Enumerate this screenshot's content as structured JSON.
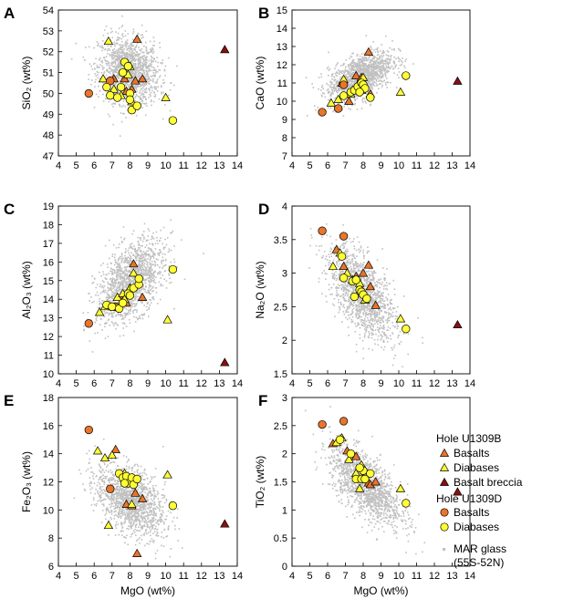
{
  "chart_data": [
    {
      "panel": "A",
      "type": "scatter",
      "xlabel": "",
      "ylabel": "SiO₂ (wt%)",
      "xlim": [
        4,
        14
      ],
      "ylim": [
        47,
        54
      ],
      "xticks": [
        4,
        5,
        6,
        7,
        8,
        9,
        10,
        11,
        12,
        13,
        14
      ],
      "yticks": [
        47,
        48,
        49,
        50,
        51,
        52,
        53,
        54
      ],
      "series": [
        {
          "name": "Basalts (U1309B)",
          "marker": "triangle",
          "color": "#e8752a",
          "points": [
            [
              7.1,
              50.7
            ],
            [
              7.8,
              50.1
            ],
            [
              8.1,
              50.2
            ],
            [
              8.3,
              50.6
            ],
            [
              8.4,
              52.6
            ],
            [
              8.7,
              50.7
            ],
            [
              7.7,
              50.7
            ]
          ]
        },
        {
          "name": "Diabases (U1309B)",
          "marker": "triangle",
          "color": "#ffff33",
          "points": [
            [
              6.5,
              50.7
            ],
            [
              6.8,
              52.5
            ],
            [
              7.1,
              50.2
            ],
            [
              7.5,
              49.9
            ],
            [
              8.0,
              51.3
            ],
            [
              8.1,
              49.6
            ],
            [
              7.9,
              50.9
            ],
            [
              10.0,
              49.8
            ]
          ]
        },
        {
          "name": "Basalt breccia (U1309B)",
          "marker": "triangle",
          "color": "#8b0f0f",
          "points": [
            [
              13.3,
              52.1
            ]
          ]
        },
        {
          "name": "Basalts (U1309D)",
          "marker": "circle",
          "color": "#e8752a",
          "points": [
            [
              5.7,
              50.0
            ],
            [
              6.9,
              50.6
            ]
          ]
        },
        {
          "name": "Diabases (U1309D)",
          "marker": "circle",
          "color": "#ffff33",
          "points": [
            [
              6.7,
              50.3
            ],
            [
              6.9,
              49.9
            ],
            [
              7.3,
              49.8
            ],
            [
              7.5,
              50.3
            ],
            [
              7.7,
              51.5
            ],
            [
              7.9,
              51.3
            ],
            [
              8.0,
              50.0
            ],
            [
              8.0,
              49.7
            ],
            [
              8.1,
              49.2
            ],
            [
              8.4,
              49.4
            ],
            [
              7.6,
              51.0
            ],
            [
              10.4,
              48.7
            ]
          ]
        }
      ]
    },
    {
      "panel": "B",
      "type": "scatter",
      "xlabel": "",
      "ylabel": "CaO (wt%)",
      "xlim": [
        4,
        14
      ],
      "ylim": [
        7,
        15
      ],
      "xticks": [
        4,
        5,
        6,
        7,
        8,
        9,
        10,
        11,
        12,
        13,
        14
      ],
      "yticks": [
        7,
        8,
        9,
        10,
        11,
        12,
        13,
        14,
        15
      ],
      "series": [
        {
          "name": "Basalts (U1309B)",
          "marker": "triangle",
          "color": "#e8752a",
          "points": [
            [
              6.8,
              11.0
            ],
            [
              7.2,
              10.0
            ],
            [
              7.6,
              11.4
            ],
            [
              7.9,
              11.3
            ],
            [
              8.3,
              12.7
            ],
            [
              8.4,
              10.4
            ],
            [
              7.4,
              10.6
            ]
          ]
        },
        {
          "name": "Diabases (U1309B)",
          "marker": "triangle",
          "color": "#ffff33",
          "points": [
            [
              6.2,
              9.9
            ],
            [
              6.6,
              10.1
            ],
            [
              6.9,
              11.2
            ],
            [
              7.3,
              10.4
            ],
            [
              7.7,
              10.9
            ],
            [
              8.0,
              11.3
            ],
            [
              10.1,
              10.5
            ],
            [
              7.9,
              10.6
            ]
          ]
        },
        {
          "name": "Basalt breccia (U1309B)",
          "marker": "triangle",
          "color": "#8b0f0f",
          "points": [
            [
              13.3,
              11.1
            ]
          ]
        },
        {
          "name": "Basalts (U1309D)",
          "marker": "circle",
          "color": "#e8752a",
          "points": [
            [
              5.7,
              9.4
            ],
            [
              6.6,
              9.6
            ],
            [
              6.9,
              10.9
            ]
          ]
        },
        {
          "name": "Diabases (U1309D)",
          "marker": "circle",
          "color": "#ffff33",
          "points": [
            [
              6.9,
              10.3
            ],
            [
              7.3,
              10.5
            ],
            [
              7.5,
              10.6
            ],
            [
              7.7,
              10.8
            ],
            [
              7.9,
              11.0
            ],
            [
              8.0,
              10.9
            ],
            [
              8.1,
              10.7
            ],
            [
              8.4,
              10.2
            ],
            [
              10.4,
              11.4
            ],
            [
              7.8,
              10.5
            ]
          ]
        }
      ]
    },
    {
      "panel": "C",
      "type": "scatter",
      "xlabel": "",
      "ylabel": "Al₂O₃ (wt%)",
      "xlim": [
        4,
        14
      ],
      "ylim": [
        10,
        19
      ],
      "xticks": [
        4,
        5,
        6,
        7,
        8,
        9,
        10,
        11,
        12,
        13,
        14
      ],
      "yticks": [
        10,
        11,
        12,
        13,
        14,
        15,
        16,
        17,
        18,
        19
      ],
      "series": [
        {
          "name": "Basalts (U1309B)",
          "marker": "triangle",
          "color": "#e8752a",
          "points": [
            [
              7.0,
              13.6
            ],
            [
              7.6,
              14.0
            ],
            [
              8.0,
              14.6
            ],
            [
              8.2,
              15.9
            ],
            [
              8.7,
              14.1
            ],
            [
              7.8,
              13.8
            ]
          ]
        },
        {
          "name": "Diabases (U1309B)",
          "marker": "triangle",
          "color": "#ffff33",
          "points": [
            [
              6.3,
              13.3
            ],
            [
              6.6,
              13.6
            ],
            [
              7.3,
              14.1
            ],
            [
              7.6,
              14.3
            ],
            [
              8.0,
              14.6
            ],
            [
              8.2,
              15.4
            ],
            [
              10.1,
              12.9
            ],
            [
              7.7,
              14.0
            ]
          ]
        },
        {
          "name": "Basalt breccia (U1309B)",
          "marker": "triangle",
          "color": "#8b0f0f",
          "points": [
            [
              13.3,
              10.6
            ]
          ]
        },
        {
          "name": "Basalts (U1309D)",
          "marker": "circle",
          "color": "#e8752a",
          "points": [
            [
              5.7,
              12.7
            ],
            [
              7.2,
              13.6
            ]
          ]
        },
        {
          "name": "Diabases (U1309D)",
          "marker": "circle",
          "color": "#ffff33",
          "points": [
            [
              6.7,
              13.7
            ],
            [
              7.0,
              13.6
            ],
            [
              7.4,
              13.5
            ],
            [
              7.6,
              13.8
            ],
            [
              7.9,
              14.3
            ],
            [
              8.0,
              14.2
            ],
            [
              8.2,
              14.6
            ],
            [
              8.5,
              14.8
            ],
            [
              8.5,
              15.1
            ],
            [
              10.4,
              15.6
            ]
          ]
        }
      ]
    },
    {
      "panel": "D",
      "type": "scatter",
      "xlabel": "",
      "ylabel": "Na₂O (wt%)",
      "xlim": [
        4,
        14
      ],
      "ylim": [
        1.5,
        4
      ],
      "xticks": [
        4,
        5,
        6,
        7,
        8,
        9,
        10,
        11,
        12,
        13,
        14
      ],
      "yticks": [
        1.5,
        2,
        2.5,
        3,
        3.5,
        4
      ],
      "series": [
        {
          "name": "Basalts (U1309B)",
          "marker": "triangle",
          "color": "#e8752a",
          "points": [
            [
              6.5,
              3.35
            ],
            [
              6.9,
              3.1
            ],
            [
              7.6,
              2.95
            ],
            [
              8.0,
              3.0
            ],
            [
              8.3,
              3.12
            ],
            [
              8.4,
              2.8
            ],
            [
              8.7,
              2.52
            ]
          ]
        },
        {
          "name": "Diabases (U1309B)",
          "marker": "triangle",
          "color": "#ffff33",
          "points": [
            [
              6.3,
              3.1
            ],
            [
              6.7,
              3.3
            ],
            [
              7.1,
              3.0
            ],
            [
              7.4,
              2.9
            ],
            [
              7.8,
              2.85
            ],
            [
              8.1,
              2.6
            ],
            [
              10.1,
              2.32
            ],
            [
              7.9,
              2.7
            ]
          ]
        },
        {
          "name": "Basalt breccia (U1309B)",
          "marker": "triangle",
          "color": "#8b0f0f",
          "points": [
            [
              13.3,
              2.23
            ]
          ]
        },
        {
          "name": "Basalts (U1309D)",
          "marker": "circle",
          "color": "#e8752a",
          "points": [
            [
              5.7,
              3.63
            ],
            [
              6.9,
              3.55
            ]
          ]
        },
        {
          "name": "Diabases (U1309D)",
          "marker": "circle",
          "color": "#ffff33",
          "points": [
            [
              6.8,
              3.25
            ],
            [
              6.9,
              2.93
            ],
            [
              7.4,
              2.88
            ],
            [
              7.5,
              2.65
            ],
            [
              7.8,
              2.75
            ],
            [
              7.9,
              2.72
            ],
            [
              8.0,
              2.68
            ],
            [
              8.2,
              2.62
            ],
            [
              10.4,
              2.17
            ],
            [
              7.6,
              2.9
            ]
          ]
        }
      ]
    },
    {
      "panel": "E",
      "type": "scatter",
      "xlabel": "MgO (wt%)",
      "ylabel": "Fe₂O₃ (wt%)",
      "xlim": [
        4,
        14
      ],
      "ylim": [
        6,
        18
      ],
      "xticks": [
        4,
        5,
        6,
        7,
        8,
        9,
        10,
        11,
        12,
        13,
        14
      ],
      "yticks": [
        6,
        8,
        10,
        12,
        14,
        16,
        18
      ],
      "series": [
        {
          "name": "Basalts (U1309B)",
          "marker": "triangle",
          "color": "#e8752a",
          "points": [
            [
              7.2,
              14.3
            ],
            [
              7.8,
              10.4
            ],
            [
              8.1,
              10.3
            ],
            [
              8.3,
              11.2
            ],
            [
              8.4,
              6.9
            ],
            [
              8.7,
              10.8
            ]
          ]
        },
        {
          "name": "Diabases (U1309B)",
          "marker": "triangle",
          "color": "#ffff33",
          "points": [
            [
              6.2,
              14.2
            ],
            [
              6.6,
              13.7
            ],
            [
              6.8,
              8.9
            ],
            [
              7.0,
              13.9
            ],
            [
              7.7,
              12.6
            ],
            [
              8.1,
              10.4
            ],
            [
              10.1,
              12.5
            ],
            [
              7.9,
              12.2
            ]
          ]
        },
        {
          "name": "Basalt breccia (U1309B)",
          "marker": "triangle",
          "color": "#8b0f0f",
          "points": [
            [
              13.3,
              9.0
            ]
          ]
        },
        {
          "name": "Basalts (U1309D)",
          "marker": "circle",
          "color": "#e8752a",
          "points": [
            [
              5.7,
              15.7
            ],
            [
              6.9,
              11.5
            ]
          ]
        },
        {
          "name": "Diabases (U1309D)",
          "marker": "circle",
          "color": "#ffff33",
          "points": [
            [
              7.4,
              12.6
            ],
            [
              7.6,
              12.3
            ],
            [
              7.8,
              12.4
            ],
            [
              7.9,
              11.9
            ],
            [
              8.1,
              12.3
            ],
            [
              8.2,
              11.8
            ],
            [
              8.4,
              12.2
            ],
            [
              7.7,
              11.9
            ],
            [
              10.4,
              10.3
            ]
          ]
        }
      ]
    },
    {
      "panel": "F",
      "type": "scatter",
      "xlabel": "MgO (wt%)",
      "ylabel": "TiO₂ (wt%)",
      "xlim": [
        4,
        14
      ],
      "ylim": [
        0,
        3
      ],
      "xticks": [
        4,
        5,
        6,
        7,
        8,
        9,
        10,
        11,
        12,
        13,
        14
      ],
      "yticks": [
        0,
        0.5,
        1,
        1.5,
        2,
        2.5,
        3
      ],
      "series": [
        {
          "name": "Basalts (U1309B)",
          "marker": "triangle",
          "color": "#e8752a",
          "points": [
            [
              6.3,
              2.18
            ],
            [
              7.1,
              2.05
            ],
            [
              7.6,
              1.95
            ],
            [
              8.0,
              1.55
            ],
            [
              8.3,
              1.48
            ],
            [
              8.4,
              1.45
            ],
            [
              8.7,
              1.5
            ]
          ]
        },
        {
          "name": "Diabases (U1309B)",
          "marker": "triangle",
          "color": "#ffff33",
          "points": [
            [
              6.5,
              2.2
            ],
            [
              6.8,
              2.28
            ],
            [
              7.2,
              1.9
            ],
            [
              7.6,
              1.65
            ],
            [
              7.8,
              1.38
            ],
            [
              8.1,
              1.7
            ],
            [
              10.1,
              1.38
            ],
            [
              7.9,
              1.8
            ]
          ]
        },
        {
          "name": "Basalt breccia (U1309B)",
          "marker": "triangle",
          "color": "#8b0f0f",
          "points": [
            [
              13.3,
              1.32
            ]
          ]
        },
        {
          "name": "Basalts (U1309D)",
          "marker": "circle",
          "color": "#e8752a",
          "points": [
            [
              5.7,
              2.52
            ],
            [
              6.9,
              2.58
            ]
          ]
        },
        {
          "name": "Diabases (U1309D)",
          "marker": "circle",
          "color": "#ffff33",
          "points": [
            [
              6.7,
              2.25
            ],
            [
              7.3,
              2.0
            ],
            [
              7.6,
              1.55
            ],
            [
              7.9,
              1.55
            ],
            [
              8.0,
              1.7
            ],
            [
              8.1,
              1.55
            ],
            [
              8.4,
              1.65
            ],
            [
              7.8,
              1.75
            ],
            [
              10.4,
              1.12
            ]
          ]
        }
      ]
    }
  ],
  "legend": {
    "group1_title": "Hole U1309B",
    "group1_items": [
      {
        "label": "Basalts",
        "marker": "triangle",
        "color": "#e8752a"
      },
      {
        "label": "Diabases",
        "marker": "triangle",
        "color": "#ffff33"
      },
      {
        "label": "Basalt breccia",
        "marker": "triangle",
        "color": "#8b0f0f"
      }
    ],
    "group2_title": "Hole U1309D",
    "group2_items": [
      {
        "label": "Basalts",
        "marker": "circle",
        "color": "#e8752a"
      },
      {
        "label": "Diabases",
        "marker": "circle",
        "color": "#ffff33"
      }
    ],
    "glass_label_1": "MAR glass",
    "glass_label_2": "(55S-52N)",
    "glass_color": "#c0c0c0"
  }
}
